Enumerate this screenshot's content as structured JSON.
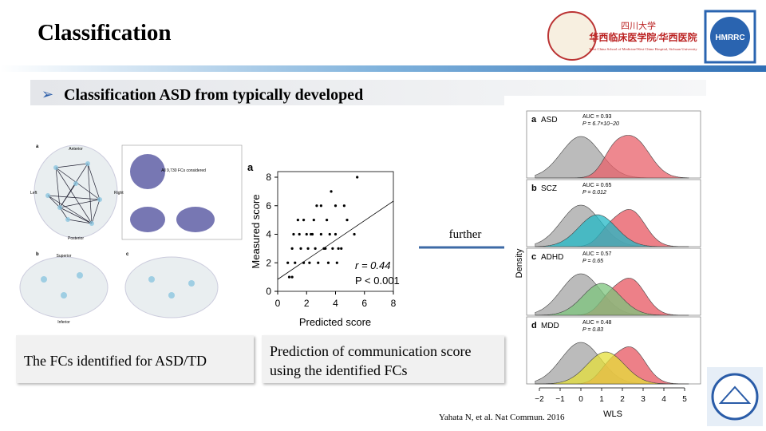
{
  "header": {
    "title": "Classification",
    "logo_cn": "四川大学",
    "logo_school": "华西临床医学院/华西医院",
    "logo_en": "West China School of Medicine/West China Hospital, Sichuan University",
    "logo_badge": "HMRRC"
  },
  "subtitle": "Classification ASD from typically developed",
  "left_figure": {
    "panel_a": "a",
    "panel_b": "b",
    "panel_c": "c",
    "anterior": "Anterior",
    "posterior": "Posterior",
    "left": "Left",
    "right": "Right",
    "all_fcs": "All 9,730 FCs considered",
    "superior": "Superior",
    "inferior": "Inferior",
    "caption": "The FCs identified for ASD/TD"
  },
  "scatter": {
    "panel": "a",
    "xlabel": "Predicted score",
    "ylabel": "Measured score",
    "xticks": [
      "0",
      "2",
      "4",
      "6",
      "8"
    ],
    "yticks": [
      "0",
      "2",
      "4",
      "6",
      "8"
    ],
    "stat_r": "r = 0.44",
    "stat_p": "P < 0.001",
    "caption": "Prediction of communication score using the identified FCs"
  },
  "arrow_label": "further",
  "density": {
    "ylabel": "Density",
    "xlabel": "WLS",
    "xticks": [
      "−2",
      "−1",
      "0",
      "1",
      "2",
      "3",
      "4",
      "5"
    ],
    "panels": [
      {
        "letter": "a",
        "name": "ASD",
        "auc": "AUC = 0.93",
        "p": "P = 6.7×10−20"
      },
      {
        "letter": "b",
        "name": "SCZ",
        "auc": "AUC = 0.65",
        "p": "P = 0.012"
      },
      {
        "letter": "c",
        "name": "ADHD",
        "auc": "AUC = 0.57",
        "p": "P = 0.65"
      },
      {
        "letter": "d",
        "name": "MDD",
        "auc": "AUC = 0.48",
        "p": "P = 0.83"
      }
    ]
  },
  "citation": "Yahata N, et al. Nat Commun. 2016"
}
